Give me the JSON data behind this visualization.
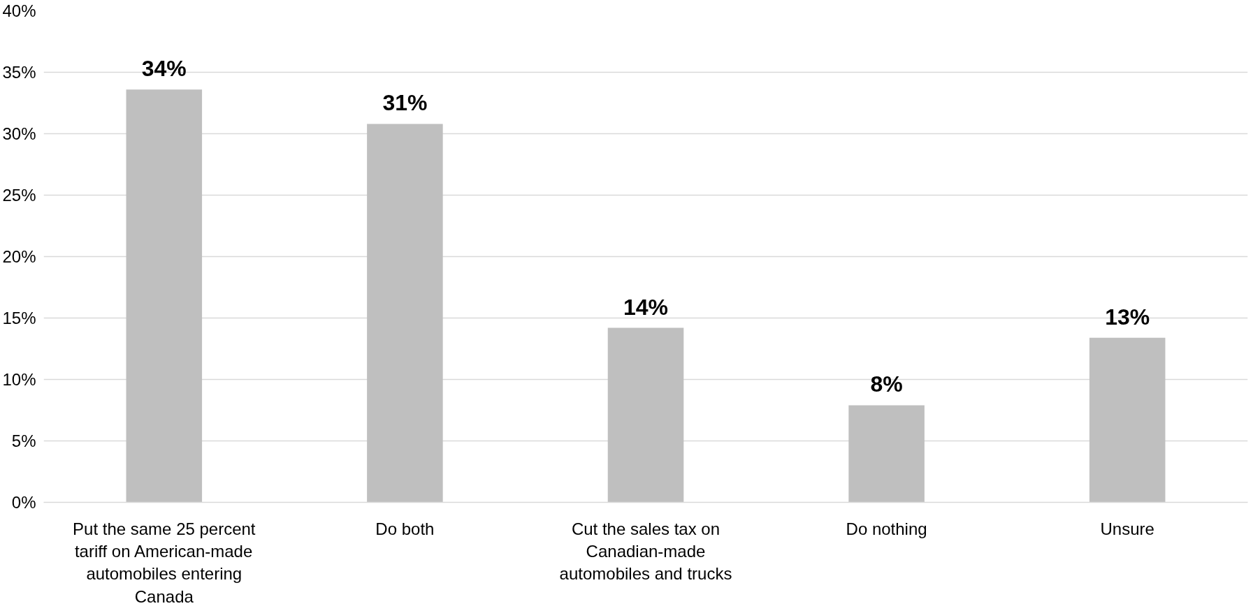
{
  "chart_data": {
    "type": "bar",
    "categories": [
      "Put the same 25 percent tariff on American-made automobiles entering Canada",
      "Do both",
      "Cut the sales tax on Canadian-made automobiles and trucks",
      "Do nothing",
      "Unsure"
    ],
    "values": [
      33.6,
      30.8,
      14.2,
      7.9,
      13.4
    ],
    "value_labels": [
      "34%",
      "31%",
      "14%",
      "8%",
      "13%"
    ],
    "color": "#bfbfbf",
    "ylim": [
      0,
      40
    ],
    "yticks": [
      {
        "value": 0,
        "label": "0%"
      },
      {
        "value": 5,
        "label": "5%"
      },
      {
        "value": 10,
        "label": "10%"
      },
      {
        "value": 15,
        "label": "15%"
      },
      {
        "value": 20,
        "label": "20%"
      },
      {
        "value": 25,
        "label": "25%"
      },
      {
        "value": 30,
        "label": "30%"
      },
      {
        "value": 35,
        "label": "35%"
      },
      {
        "value": 40,
        "label": "40%"
      }
    ],
    "grid": "y"
  }
}
